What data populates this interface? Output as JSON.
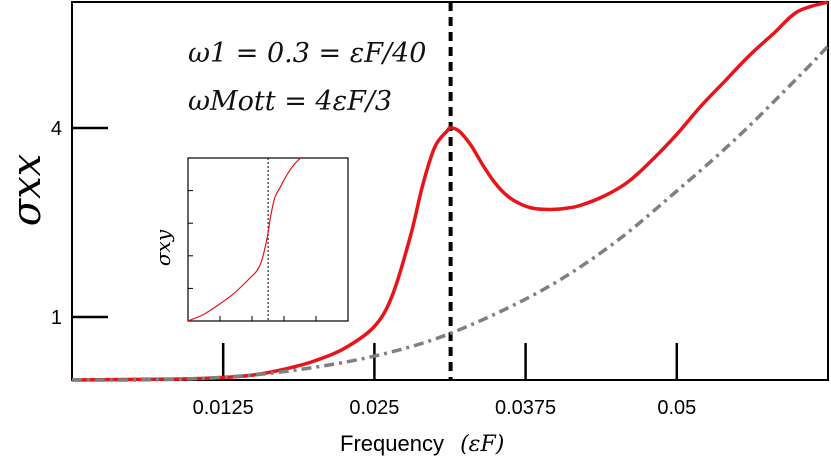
{
  "chart_data": {
    "type": "line",
    "xlabel": "Frequency",
    "xlabel_unit": "(εF)",
    "ylabel": "σxx",
    "xlim": [
      0.0,
      0.0625
    ],
    "ylim": [
      0.0,
      6.0
    ],
    "x_ticks": [
      0.0125,
      0.025,
      0.0375,
      0.05
    ],
    "x_tick_labels": [
      "0.0125",
      "0.025",
      "0.0375",
      "0.05"
    ],
    "y_ticks": [
      1,
      4
    ],
    "y_tick_labels": [
      "1",
      "4"
    ],
    "annotations": [
      "ω1 = 0.3 = εF/40",
      "ωMott = 4εF/3"
    ],
    "vline_x": 0.0313,
    "series": [
      {
        "style": "solid",
        "color": "#e8141a",
        "x": [
          0.0,
          0.005,
          0.01,
          0.0125,
          0.015,
          0.0175,
          0.02,
          0.0225,
          0.025,
          0.0265,
          0.028,
          0.029,
          0.03,
          0.031,
          0.0313,
          0.032,
          0.033,
          0.034,
          0.035,
          0.036,
          0.037,
          0.038,
          0.039,
          0.04,
          0.041,
          0.042,
          0.044,
          0.046,
          0.048,
          0.05,
          0.052,
          0.054,
          0.056,
          0.058,
          0.06,
          0.0625
        ],
        "y": [
          0.0,
          0.01,
          0.02,
          0.04,
          0.08,
          0.17,
          0.3,
          0.5,
          0.85,
          1.35,
          2.3,
          3.1,
          3.7,
          3.95,
          4.0,
          3.95,
          3.72,
          3.4,
          3.12,
          2.92,
          2.8,
          2.73,
          2.71,
          2.71,
          2.73,
          2.77,
          2.92,
          3.15,
          3.5,
          3.9,
          4.35,
          4.75,
          5.15,
          5.5,
          5.85,
          6.0
        ]
      },
      {
        "style": "dash-dot",
        "color": "#808080",
        "x": [
          0.0,
          0.005,
          0.01,
          0.015,
          0.02,
          0.025,
          0.03,
          0.035,
          0.04,
          0.045,
          0.05,
          0.055,
          0.06,
          0.0625
        ],
        "y": [
          0.0,
          0.0,
          0.02,
          0.08,
          0.2,
          0.38,
          0.65,
          1.05,
          1.55,
          2.2,
          3.0,
          3.85,
          4.8,
          5.3
        ]
      }
    ],
    "inset": {
      "ylabel": "σxy",
      "xlim": [
        0.0,
        0.0625
      ],
      "ylim": [
        0.0,
        1.0
      ],
      "vline_x": 0.0313,
      "series": [
        {
          "style": "solid",
          "color": "#e8141a",
          "x": [
            0.0,
            0.006,
            0.012,
            0.018,
            0.024,
            0.027,
            0.029,
            0.031,
            0.0325,
            0.034,
            0.036,
            0.038,
            0.04,
            0.042,
            0.044
          ],
          "y": [
            0.0,
            0.04,
            0.1,
            0.17,
            0.26,
            0.31,
            0.38,
            0.52,
            0.66,
            0.76,
            0.82,
            0.88,
            0.93,
            0.97,
            1.0
          ]
        }
      ]
    }
  }
}
